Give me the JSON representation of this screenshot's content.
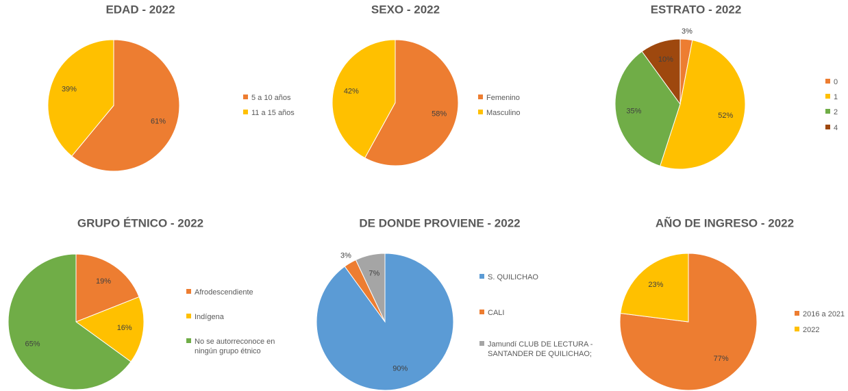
{
  "chart_data": [
    {
      "type": "pie",
      "title": "EDAD - 2022",
      "categories": [
        "5 a 10 años",
        "11 a 15 años"
      ],
      "values": [
        61,
        39
      ],
      "value_labels": [
        "61%",
        "39%"
      ],
      "colors": [
        "#ED7D31",
        "#FFC000"
      ],
      "legend": "right"
    },
    {
      "type": "pie",
      "title": "SEXO - 2022",
      "categories": [
        "Femenino",
        "Masculino"
      ],
      "values": [
        58,
        42
      ],
      "value_labels": [
        "58%",
        "42%"
      ],
      "colors": [
        "#ED7D31",
        "#FFC000"
      ],
      "legend": "right"
    },
    {
      "type": "pie",
      "title": "ESTRATO - 2022",
      "categories": [
        "0",
        "1",
        "2",
        "4"
      ],
      "values": [
        3,
        52,
        35,
        10
      ],
      "value_labels": [
        "3%",
        "52%",
        "35%",
        "10%"
      ],
      "colors": [
        "#ED7D31",
        "#FFC000",
        "#70AD47",
        "#9E480E"
      ],
      "legend": "right"
    },
    {
      "type": "pie",
      "title": "GRUPO ÉTNICO - 2022",
      "categories": [
        "Afrodescendiente",
        "Indígena",
        "No se autorreconoce en ningún grupo étnico"
      ],
      "values": [
        19,
        16,
        65
      ],
      "value_labels": [
        "19%",
        "16%",
        "65%"
      ],
      "colors": [
        "#ED7D31",
        "#FFC000",
        "#70AD47"
      ],
      "legend": "right"
    },
    {
      "type": "pie",
      "title": "DE DONDE PROVIENE - 2022",
      "categories": [
        "S. QUILICHAO",
        "CALI",
        "Jamundí CLUB DE LECTURA - SANTANDER DE QUILICHAO;"
      ],
      "values": [
        90,
        3,
        7
      ],
      "value_labels": [
        "90%",
        "3%",
        "7%"
      ],
      "colors": [
        "#5B9BD5",
        "#ED7D31",
        "#A5A5A5"
      ],
      "legend": "right"
    },
    {
      "type": "pie",
      "title": "AÑO DE INGRESO - 2022",
      "categories": [
        "2016 a 2021",
        "2022"
      ],
      "values": [
        77,
        23
      ],
      "value_labels": [
        "77%",
        "23%"
      ],
      "colors": [
        "#ED7D31",
        "#FFC000"
      ],
      "legend": "right"
    }
  ]
}
